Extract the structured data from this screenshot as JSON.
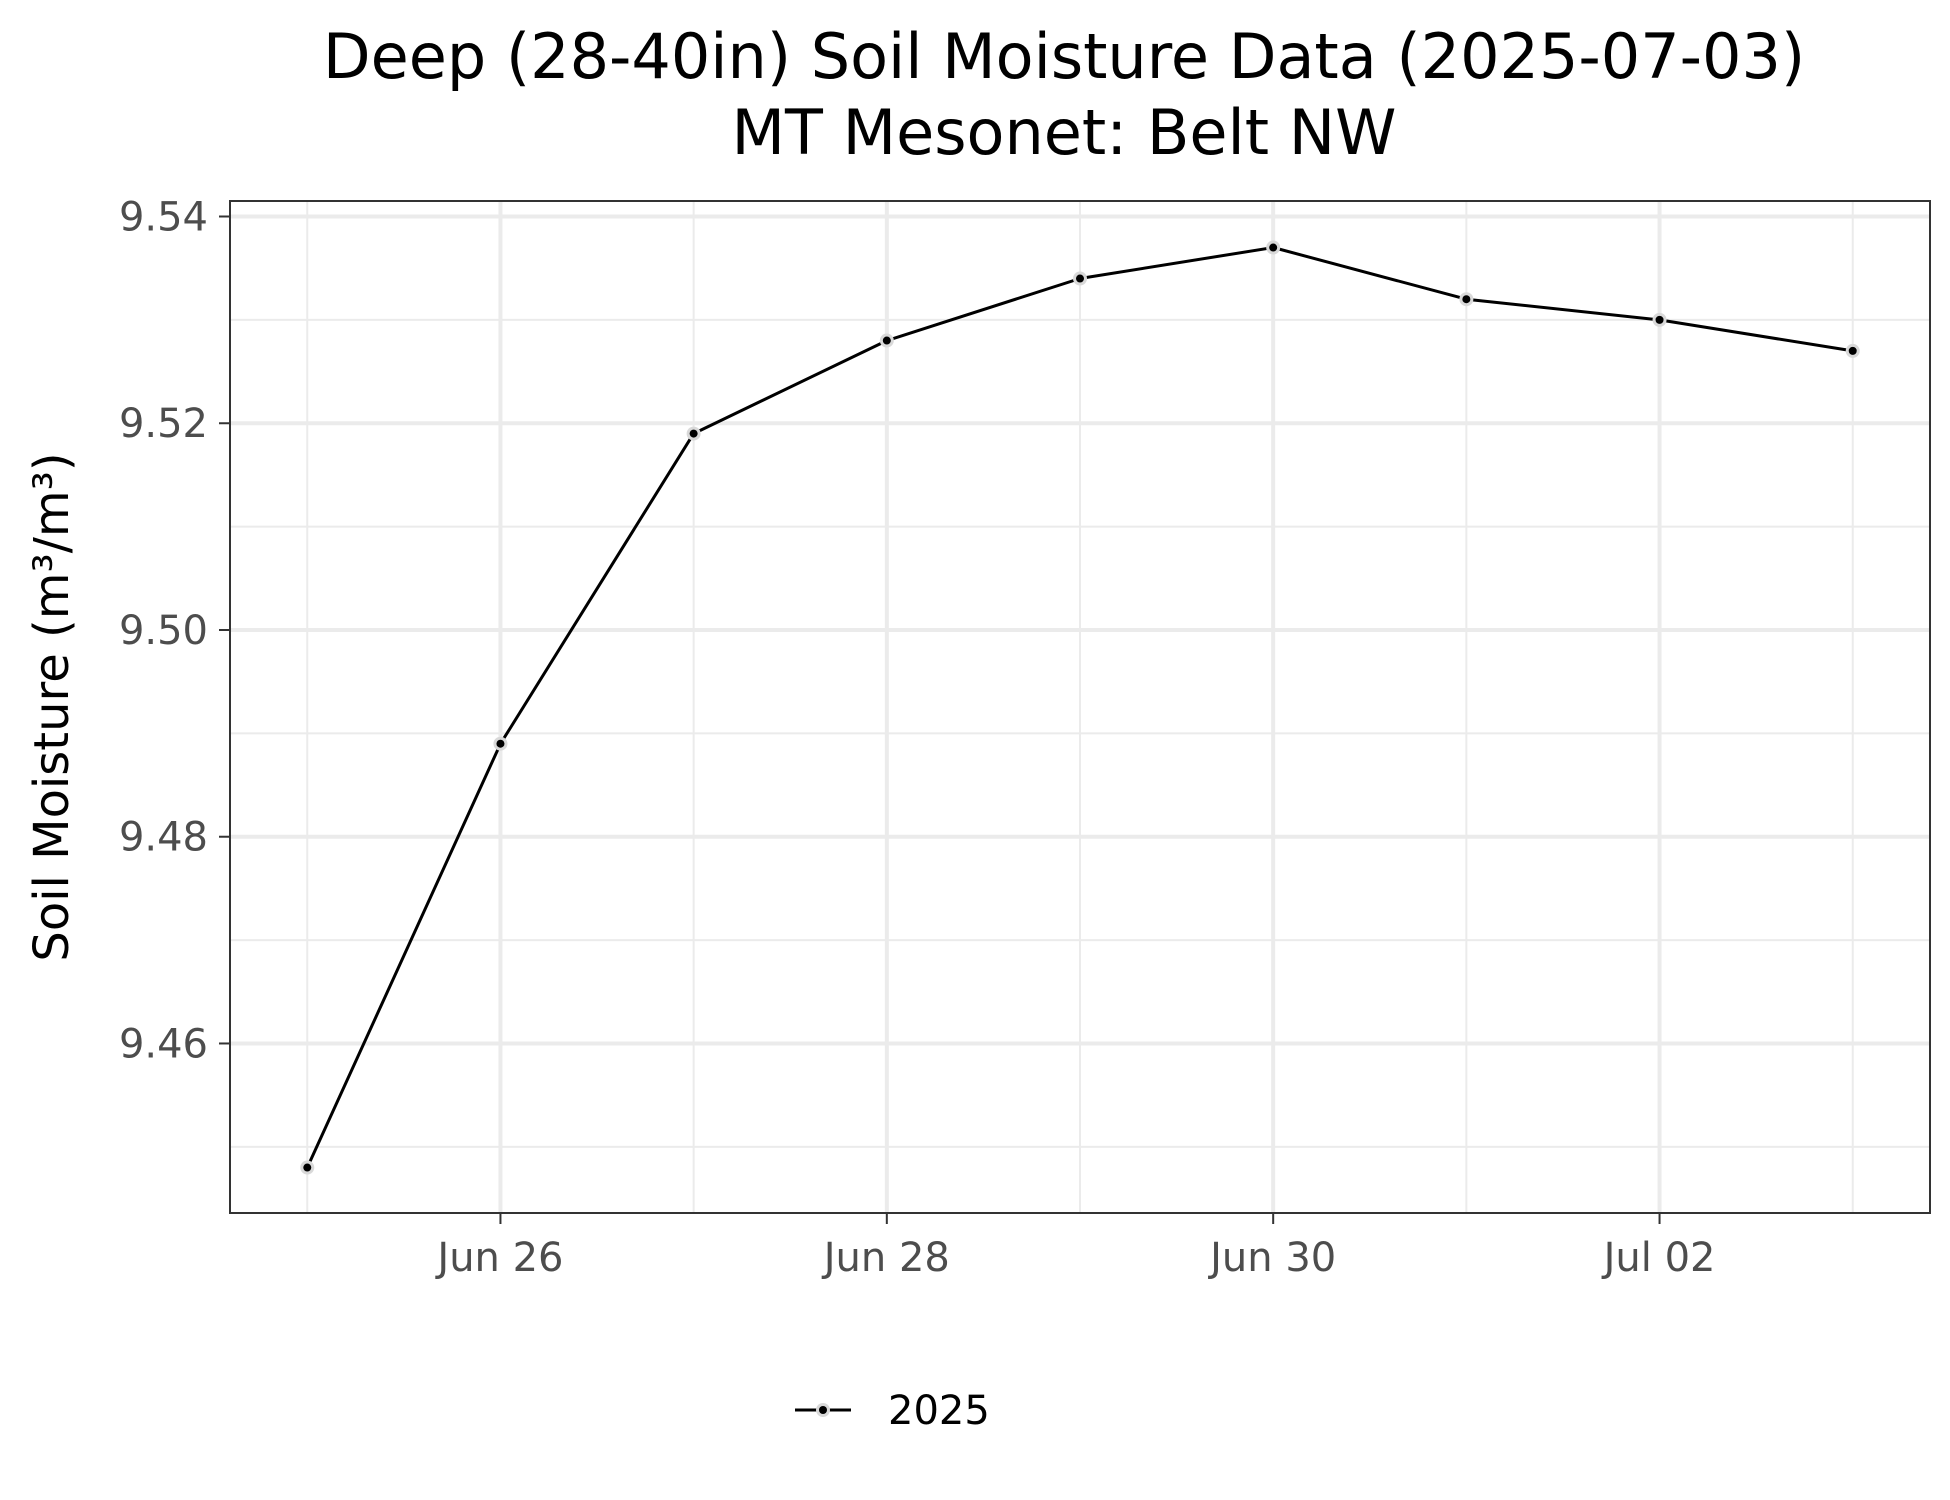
{
  "chart_data": {
    "type": "line",
    "title": "Deep (28-40in) Soil Moisture Data (2025-07-03)",
    "subtitle": "MT Mesonet: Belt NW",
    "xlabel": "",
    "ylabel": "Soil Moisture (m³/m³)",
    "x": [
      "2025-06-25",
      "2025-06-26",
      "2025-06-27",
      "2025-06-28",
      "2025-06-29",
      "2025-06-30",
      "2025-07-01",
      "2025-07-02",
      "2025-07-03"
    ],
    "series": [
      {
        "name": "2025",
        "color": "#000000",
        "values": [
          9.448,
          9.489,
          9.519,
          9.528,
          9.534,
          9.537,
          9.532,
          9.53,
          9.527
        ]
      }
    ],
    "xticks": [
      {
        "date": "2025-06-26",
        "label": "Jun 26"
      },
      {
        "date": "2025-06-28",
        "label": "Jun 28"
      },
      {
        "date": "2025-06-30",
        "label": "Jun 30"
      },
      {
        "date": "2025-07-02",
        "label": "Jul 02"
      }
    ],
    "yticks": [
      9.46,
      9.48,
      9.5,
      9.52,
      9.54
    ],
    "ytick_labels": [
      "9.46",
      "9.48",
      "9.50",
      "9.52",
      "9.54"
    ],
    "xlim": [
      "2025-06-24 14:24",
      "2025-07-03 09:36"
    ],
    "ylim": [
      9.4436,
      9.5415
    ],
    "grid": true,
    "legend_position": "bottom"
  }
}
